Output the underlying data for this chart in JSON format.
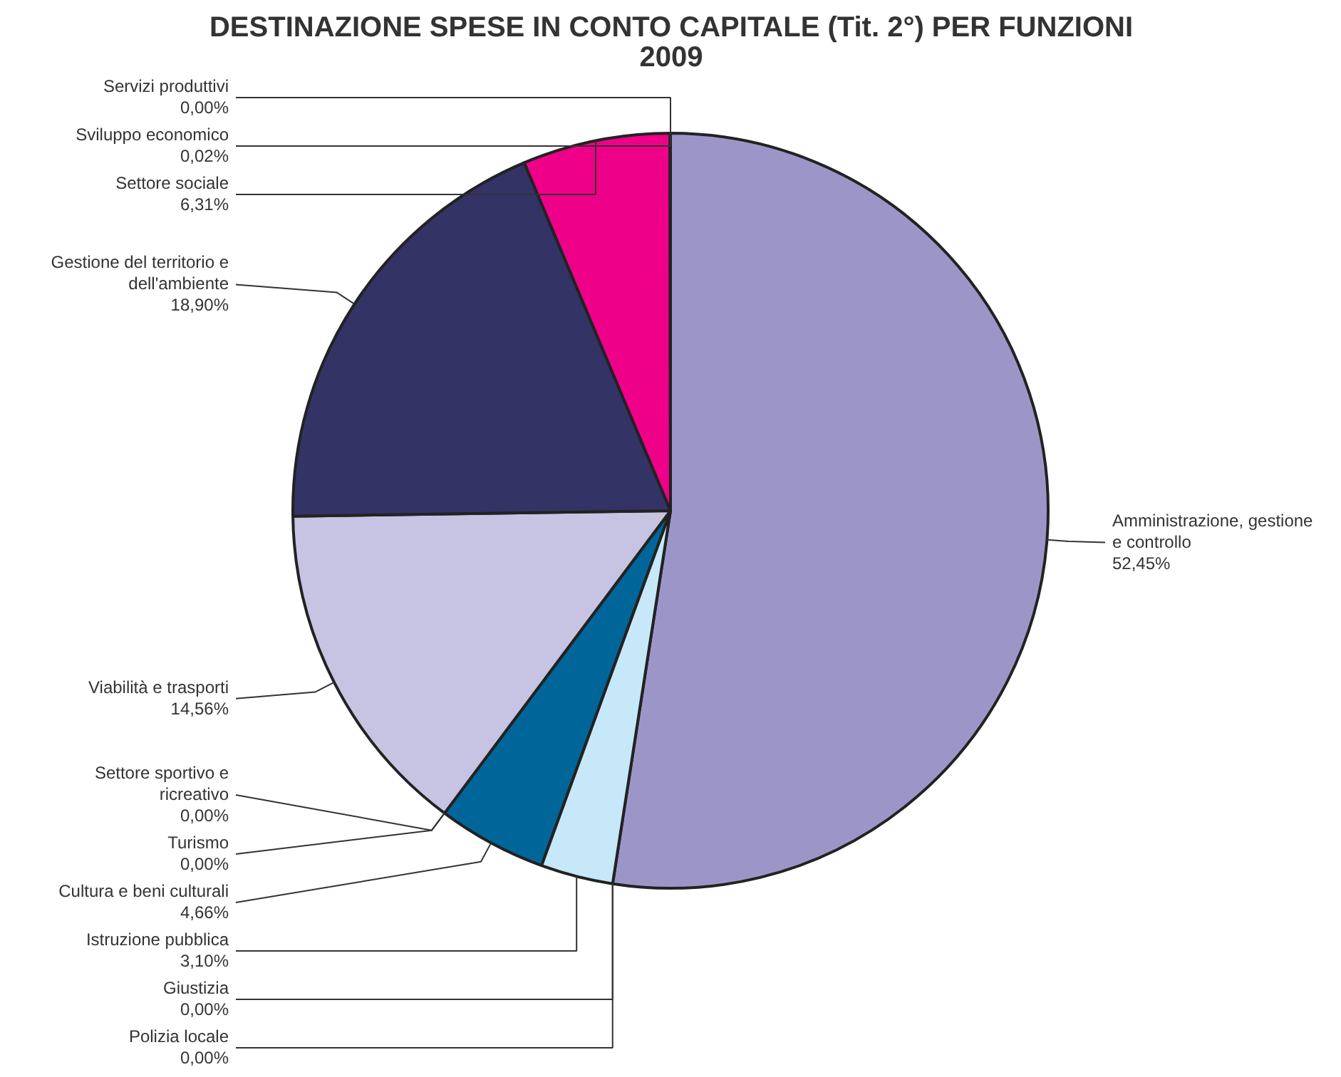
{
  "chart_data": {
    "type": "pie",
    "title": "DESTINAZIONE SPESE IN CONTO CAPITALE (Tit. 2°) PER FUNZIONI 2009",
    "categories": [
      "Amministrazione, gestione e controllo",
      "Giustizia",
      "Polizia locale",
      "Istruzione pubblica",
      "Cultura e beni culturali",
      "Settore sportivo e ricreativo",
      "Turismo",
      "Viabilità e trasporti",
      "Gestione del territorio e dell'ambiente",
      "Settore sociale",
      "Sviluppo economico",
      "Servizi produttivi"
    ],
    "values": [
      52.45,
      0.0,
      0.0,
      3.1,
      4.66,
      0.0,
      0.0,
      14.56,
      18.9,
      6.31,
      0.02,
      0.0
    ],
    "value_labels": [
      "52,45%",
      "0,00%",
      "0,00%",
      "3,10%",
      "4,66%",
      "0,00%",
      "0,00%",
      "14,56%",
      "18,90%",
      "6,31%",
      "0,02%",
      "0,00%"
    ],
    "colors": [
      "#9c96c8",
      "#99ccff",
      "#ffffcc",
      "#c6e8f8",
      "#006699",
      "#ff8080",
      "#ccffff",
      "#c6c3e3",
      "#333366",
      "#ee0088",
      "#800080",
      "#0066cc"
    ]
  }
}
